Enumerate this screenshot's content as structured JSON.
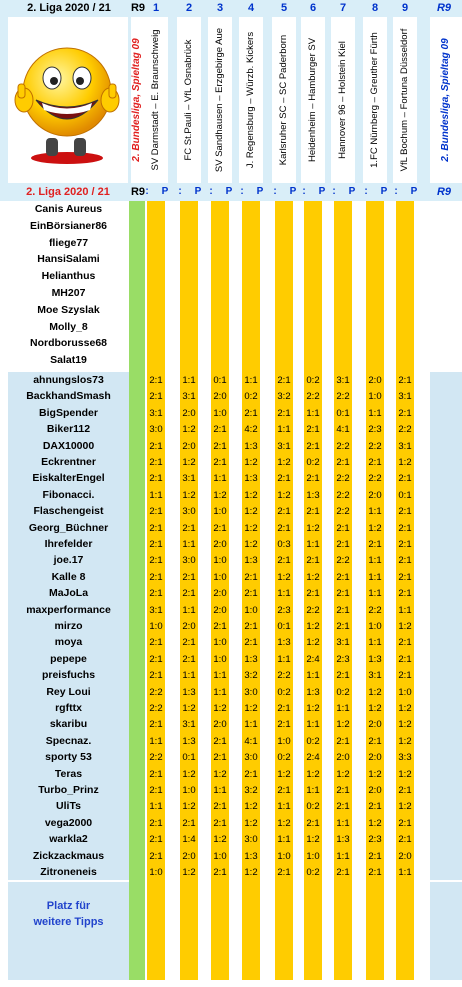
{
  "header": {
    "league": "2.  Liga  2020 / 21",
    "round": "R9",
    "round_right": "R9",
    "side_label": "2.  Bundesliga,  Spieltag  09",
    "side_label_right": "2.  Bundesliga,  Spieltag  09",
    "match_numbers": [
      "1",
      "2",
      "3",
      "4",
      "5",
      "6",
      "7",
      "8",
      "9"
    ],
    "matches": [
      "SV Darmstadt – E. Braunschweig",
      "FC St.Pauli – VfL Osnabrück",
      "SV Sandhausen – Erzgebirge Aue",
      "J. Regensburg – Würzb. Kickers",
      "Karlsruher SC – SC Paderborn",
      "Heidenheim – Hamburger SV",
      "Hannover 96 – Holstein Kiel",
      "1.FC Nürnberg – Greuther Fürth",
      "VfL Bochum – Fortuna Düsseldorf"
    ]
  },
  "subheader": {
    "league": "2.  Liga  2020 / 21",
    "round": "R9",
    "round_right": "R9",
    "col_sep": ":",
    "col_p": "P"
  },
  "upper_players": [
    "Canis Aureus",
    "EinBörsianer86",
    "fliege77",
    "HansiSalami",
    "Helianthus",
    "MH207",
    "Moe Szyslak",
    "Molly_8",
    "Nordborusse68",
    "Salat19"
  ],
  "lower_players": [
    {
      "name": "ahnungslos73",
      "tips": [
        "2:1",
        "1:1",
        "0:1",
        "1:1",
        "2:1",
        "0:2",
        "3:1",
        "2:0",
        "2:1"
      ]
    },
    {
      "name": "BackhandSmash",
      "tips": [
        "2:1",
        "3:1",
        "2:0",
        "0:2",
        "3:2",
        "2:2",
        "2:2",
        "1:0",
        "3:1"
      ]
    },
    {
      "name": "BigSpender",
      "tips": [
        "3:1",
        "2:0",
        "1:0",
        "2:1",
        "2:1",
        "1:1",
        "0:1",
        "1:1",
        "2:1"
      ]
    },
    {
      "name": "Biker112",
      "tips": [
        "3:0",
        "1:2",
        "2:1",
        "4:2",
        "1:1",
        "2:1",
        "4:1",
        "2:3",
        "2:2"
      ]
    },
    {
      "name": "DAX10000",
      "tips": [
        "2:1",
        "2:0",
        "2:1",
        "1:3",
        "3:1",
        "2:1",
        "2:2",
        "2:2",
        "3:1"
      ]
    },
    {
      "name": "Eckrentner",
      "tips": [
        "2:1",
        "1:2",
        "2:1",
        "1:2",
        "1:2",
        "0:2",
        "2:1",
        "2:1",
        "1:2"
      ]
    },
    {
      "name": "EiskalterEngel",
      "tips": [
        "2:1",
        "3:1",
        "1:1",
        "1:3",
        "2:1",
        "2:1",
        "2:2",
        "2:2",
        "2:1"
      ]
    },
    {
      "name": "Fibonacci.",
      "tips": [
        "1:1",
        "1:2",
        "1:2",
        "1:2",
        "1:2",
        "1:3",
        "2:2",
        "2:0",
        "0:1"
      ]
    },
    {
      "name": "Flaschengeist",
      "tips": [
        "2:1",
        "3:0",
        "1:0",
        "1:2",
        "2:1",
        "2:1",
        "2:2",
        "1:1",
        "2:1"
      ]
    },
    {
      "name": "Georg_Büchner",
      "tips": [
        "2:1",
        "2:1",
        "2:1",
        "1:2",
        "2:1",
        "1:2",
        "2:1",
        "1:2",
        "2:1"
      ]
    },
    {
      "name": "Ihrefelder",
      "tips": [
        "2:1",
        "1:1",
        "2:0",
        "1:2",
        "0:3",
        "1:1",
        "2:1",
        "2:1",
        "2:1"
      ]
    },
    {
      "name": "joe.17",
      "tips": [
        "2:1",
        "3:0",
        "1:0",
        "1:3",
        "2:1",
        "2:1",
        "2:2",
        "1:1",
        "2:1"
      ]
    },
    {
      "name": "Kalle 8",
      "tips": [
        "2:1",
        "2:1",
        "1:0",
        "2:1",
        "1:2",
        "1:2",
        "2:1",
        "1:1",
        "2:1"
      ]
    },
    {
      "name": "MaJoLa",
      "tips": [
        "2:1",
        "2:1",
        "2:0",
        "2:1",
        "1:1",
        "2:1",
        "2:1",
        "1:1",
        "2:1"
      ]
    },
    {
      "name": "maxperformance",
      "tips": [
        "3:1",
        "1:1",
        "2:0",
        "1:0",
        "2:3",
        "2:2",
        "2:1",
        "2:2",
        "1:1"
      ]
    },
    {
      "name": "mirzo",
      "tips": [
        "1:0",
        "2:0",
        "2:1",
        "2:1",
        "0:1",
        "1:2",
        "2:1",
        "1:0",
        "1:2"
      ]
    },
    {
      "name": "moya",
      "tips": [
        "2:1",
        "2:1",
        "1:0",
        "2:1",
        "1:3",
        "1:2",
        "3:1",
        "1:1",
        "2:1"
      ]
    },
    {
      "name": "pepepe",
      "tips": [
        "2:1",
        "2:1",
        "1:0",
        "1:3",
        "1:1",
        "2:4",
        "2:3",
        "1:3",
        "2:1"
      ]
    },
    {
      "name": "preisfuchs",
      "tips": [
        "2:1",
        "1:1",
        "1:1",
        "3:2",
        "2:2",
        "1:1",
        "2:1",
        "3:1",
        "2:1"
      ]
    },
    {
      "name": "Rey Loui",
      "tips": [
        "2:2",
        "1:3",
        "1:1",
        "3:0",
        "0:2",
        "1:3",
        "0:2",
        "1:2",
        "1:0"
      ]
    },
    {
      "name": "rgfttx",
      "tips": [
        "2:2",
        "1:2",
        "1:2",
        "1:2",
        "2:1",
        "1:2",
        "1:1",
        "1:2",
        "1:2"
      ]
    },
    {
      "name": "skaribu",
      "tips": [
        "2:1",
        "3:1",
        "2:0",
        "1:1",
        "2:1",
        "1:1",
        "1:2",
        "2:0",
        "1:2"
      ]
    },
    {
      "name": "Specnaz.",
      "tips": [
        "1:1",
        "1:3",
        "2:1",
        "4:1",
        "1:0",
        "0:2",
        "2:1",
        "2:1",
        "1:2"
      ]
    },
    {
      "name": "sporty 53",
      "tips": [
        "2:2",
        "0:1",
        "2:1",
        "3:0",
        "0:2",
        "2:4",
        "2:0",
        "2:0",
        "3:3"
      ]
    },
    {
      "name": "Teras",
      "tips": [
        "2:1",
        "1:2",
        "1:2",
        "2:1",
        "1:2",
        "1:2",
        "1:2",
        "1:2",
        "1:2"
      ]
    },
    {
      "name": "Turbo_Prinz",
      "tips": [
        "2:1",
        "1:0",
        "1:1",
        "3:2",
        "2:1",
        "1:1",
        "2:1",
        "2:0",
        "2:1"
      ]
    },
    {
      "name": "UliTs",
      "tips": [
        "1:1",
        "1:2",
        "2:1",
        "1:2",
        "1:1",
        "0:2",
        "2:1",
        "2:1",
        "1:2"
      ]
    },
    {
      "name": "vega2000",
      "tips": [
        "2:1",
        "2:1",
        "2:1",
        "1:2",
        "1:2",
        "2:1",
        "1:1",
        "1:2",
        "2:1"
      ]
    },
    {
      "name": "warkla2",
      "tips": [
        "2:1",
        "1:4",
        "1:2",
        "3:0",
        "1:1",
        "1:2",
        "1:3",
        "2:3",
        "2:1"
      ]
    },
    {
      "name": "Zickzackmaus",
      "tips": [
        "2:1",
        "2:0",
        "1:0",
        "1:3",
        "1:0",
        "1:0",
        "1:1",
        "2:1",
        "2:0"
      ]
    },
    {
      "name": "Zitroneneis",
      "tips": [
        "1:0",
        "1:2",
        "2:1",
        "1:2",
        "2:1",
        "0:2",
        "2:1",
        "2:1",
        "1:1"
      ]
    }
  ],
  "footer": {
    "line1": "Platz für",
    "line2": "weitere Tipps"
  },
  "colors": {
    "header_bg": "#d9eef8",
    "title_red": "#e02020",
    "blue": "#0033cc",
    "green": "#99dd66",
    "gold": "#ffcc00",
    "lower_bg": "#d2e7f3"
  },
  "logo_icon": "smiley-thumbs-up-icon"
}
